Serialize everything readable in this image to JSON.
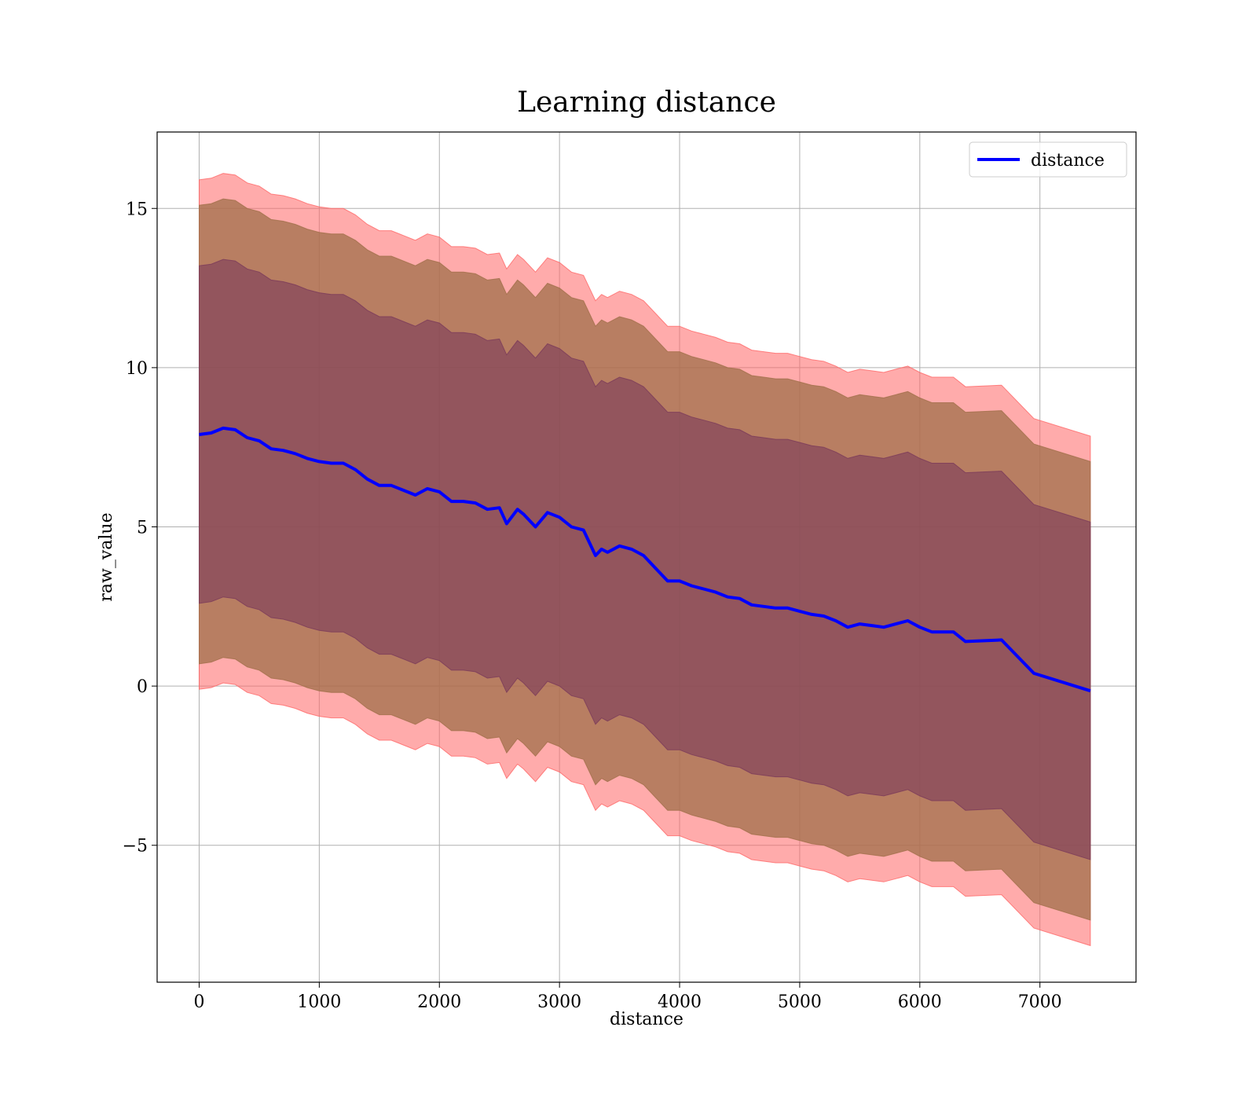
{
  "chart_data": {
    "type": "area",
    "title": "Learning distance",
    "xlabel": "distance",
    "ylabel": "raw_value",
    "xlim": [
      -350,
      7800
    ],
    "ylim": [
      -9.3,
      17.4
    ],
    "xticks": [
      0,
      1000,
      2000,
      3000,
      4000,
      5000,
      6000,
      7000
    ],
    "xtick_labels": [
      "0",
      "1000",
      "2000",
      "3000",
      "4000",
      "5000",
      "6000",
      "7000"
    ],
    "yticks": [
      -5,
      0,
      5,
      10,
      15
    ],
    "ytick_labels": [
      "−5",
      "0",
      "5",
      "10",
      "15"
    ],
    "grid": true,
    "legend": {
      "position": "top-right",
      "entries": [
        "distance"
      ]
    },
    "colors": {
      "line": "#0000ff",
      "band_outer": "#ff6666",
      "band_middle": "#a06f4a",
      "band_inner": "#7a3a5a",
      "grid": "#b0b0b0"
    },
    "series": [
      {
        "name": "distance",
        "x": [
          0,
          100,
          200,
          300,
          400,
          500,
          600,
          700,
          800,
          900,
          1000,
          1100,
          1200,
          1300,
          1400,
          1500,
          1600,
          1700,
          1800,
          1900,
          2000,
          2100,
          2200,
          2300,
          2400,
          2500,
          2560,
          2650,
          2700,
          2800,
          2900,
          3000,
          3100,
          3200,
          3300,
          3350,
          3400,
          3500,
          3600,
          3700,
          3800,
          3900,
          4000,
          4100,
          4200,
          4300,
          4400,
          4500,
          4600,
          4700,
          4800,
          4900,
          5000,
          5100,
          5200,
          5300,
          5400,
          5500,
          5600,
          5700,
          5800,
          5900,
          6000,
          6100,
          6200,
          6280,
          6380,
          6680,
          6950,
          7420
        ],
        "y": [
          7.9,
          7.95,
          8.1,
          8.05,
          7.8,
          7.7,
          7.45,
          7.4,
          7.3,
          7.15,
          7.05,
          7.0,
          7.0,
          6.8,
          6.5,
          6.3,
          6.3,
          6.15,
          6.0,
          6.2,
          6.1,
          5.8,
          5.8,
          5.75,
          5.55,
          5.6,
          5.1,
          5.55,
          5.4,
          5.0,
          5.45,
          5.3,
          5.0,
          4.9,
          4.1,
          4.3,
          4.2,
          4.4,
          4.3,
          4.1,
          3.7,
          3.3,
          3.3,
          3.15,
          3.05,
          2.95,
          2.8,
          2.75,
          2.55,
          2.5,
          2.45,
          2.45,
          2.35,
          2.25,
          2.2,
          2.05,
          1.85,
          1.95,
          1.9,
          1.85,
          1.95,
          2.05,
          1.85,
          1.7,
          1.7,
          1.7,
          1.4,
          1.45,
          0.4,
          -0.15
        ]
      }
    ],
    "bands": [
      {
        "level": "outer",
        "upper_offset": 8.0,
        "lower_offset": -8.0
      },
      {
        "level": "middle",
        "upper_offset": 7.2,
        "lower_offset": -7.2
      },
      {
        "level": "inner",
        "upper_offset": 5.3,
        "lower_offset": -5.3
      }
    ]
  }
}
